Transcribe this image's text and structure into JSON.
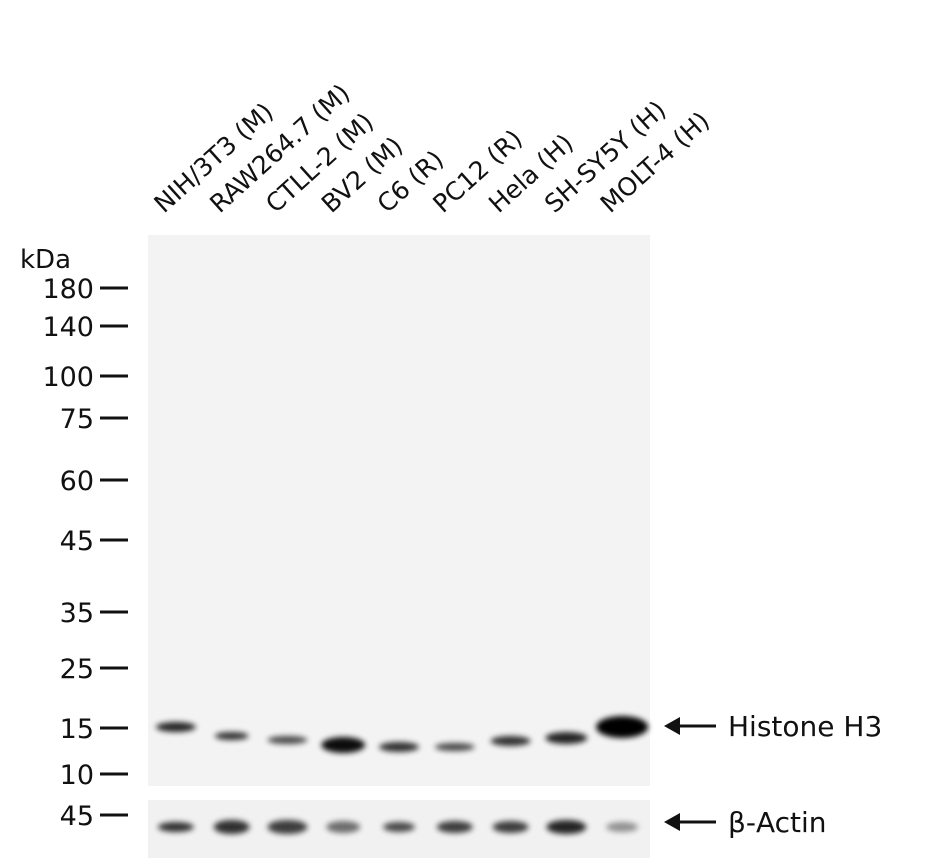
{
  "lanes": [
    "NIH/3T3 (M)",
    "RAW264.7 (M)",
    "CTLL-2 (M)",
    "BV2 (M)",
    "C6 (R)",
    "PC12 (R)",
    "Hela (H)",
    "SH-SY5Y (H)",
    "MOLT-4 (H)"
  ],
  "unit": "kDa",
  "markers": [
    "180",
    "140",
    "100",
    "75",
    "60",
    "45",
    "35",
    "25",
    "15",
    "10"
  ],
  "actin_marker": "45",
  "bands": {
    "histone": "Histone H3",
    "actin": "β-Actin"
  }
}
